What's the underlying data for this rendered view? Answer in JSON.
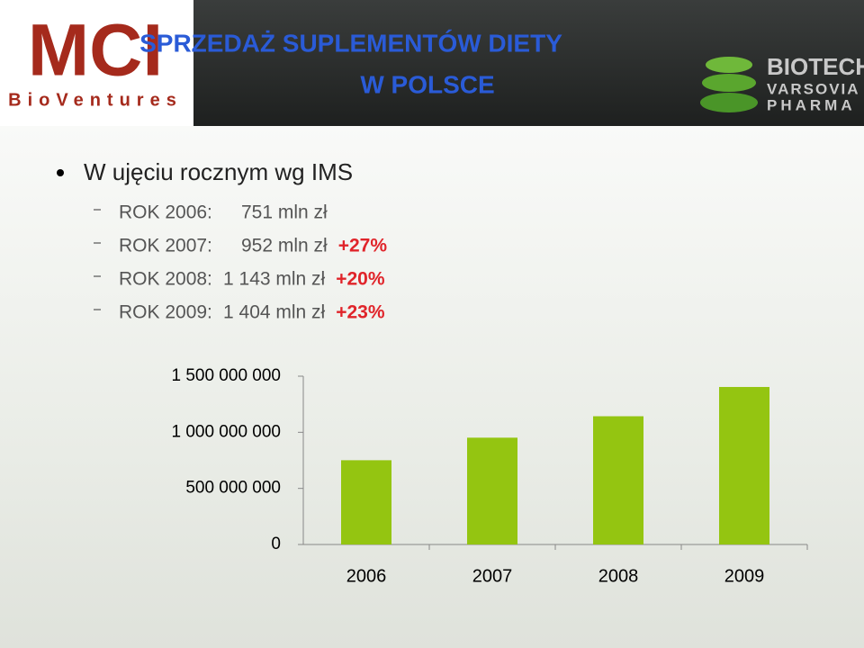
{
  "header": {
    "logo_left": {
      "name": "MCI",
      "sub": "BioVentures"
    },
    "title": [
      "SPRZEDAŻ SUPLEMENTÓW DIETY",
      "W POLSCE"
    ],
    "logo_right": [
      "BIOTECH",
      "VARSOVIA",
      "PHARMA"
    ]
  },
  "bullet": "W ujęciu rocznym wg IMS",
  "lines": [
    {
      "label": "ROK 2006:",
      "amount": "751 mln zł"
    },
    {
      "label": "ROK 2007:",
      "amount": "952 mln zł",
      "change": "+27%"
    },
    {
      "label": "ROK 2008:",
      "amount": "1 143 mln zł",
      "change": "+20%"
    },
    {
      "label": "ROK 2009:",
      "amount": "1 404 mln zł",
      "change": "+23%"
    }
  ],
  "chart_data": {
    "type": "bar",
    "categories": [
      "2006",
      "2007",
      "2008",
      "2009"
    ],
    "values": [
      751000000,
      952000000,
      1143000000,
      1404000000
    ],
    "color": "#94c511",
    "ylim": [
      0,
      1500000000
    ],
    "yticks": [
      0,
      {
        "value": 500000000,
        "label": "500 000 000"
      },
      {
        "value": 1000000000,
        "label": "1 000 000 000"
      },
      {
        "value": 1500000000,
        "label": "1 500 000 000"
      }
    ]
  }
}
